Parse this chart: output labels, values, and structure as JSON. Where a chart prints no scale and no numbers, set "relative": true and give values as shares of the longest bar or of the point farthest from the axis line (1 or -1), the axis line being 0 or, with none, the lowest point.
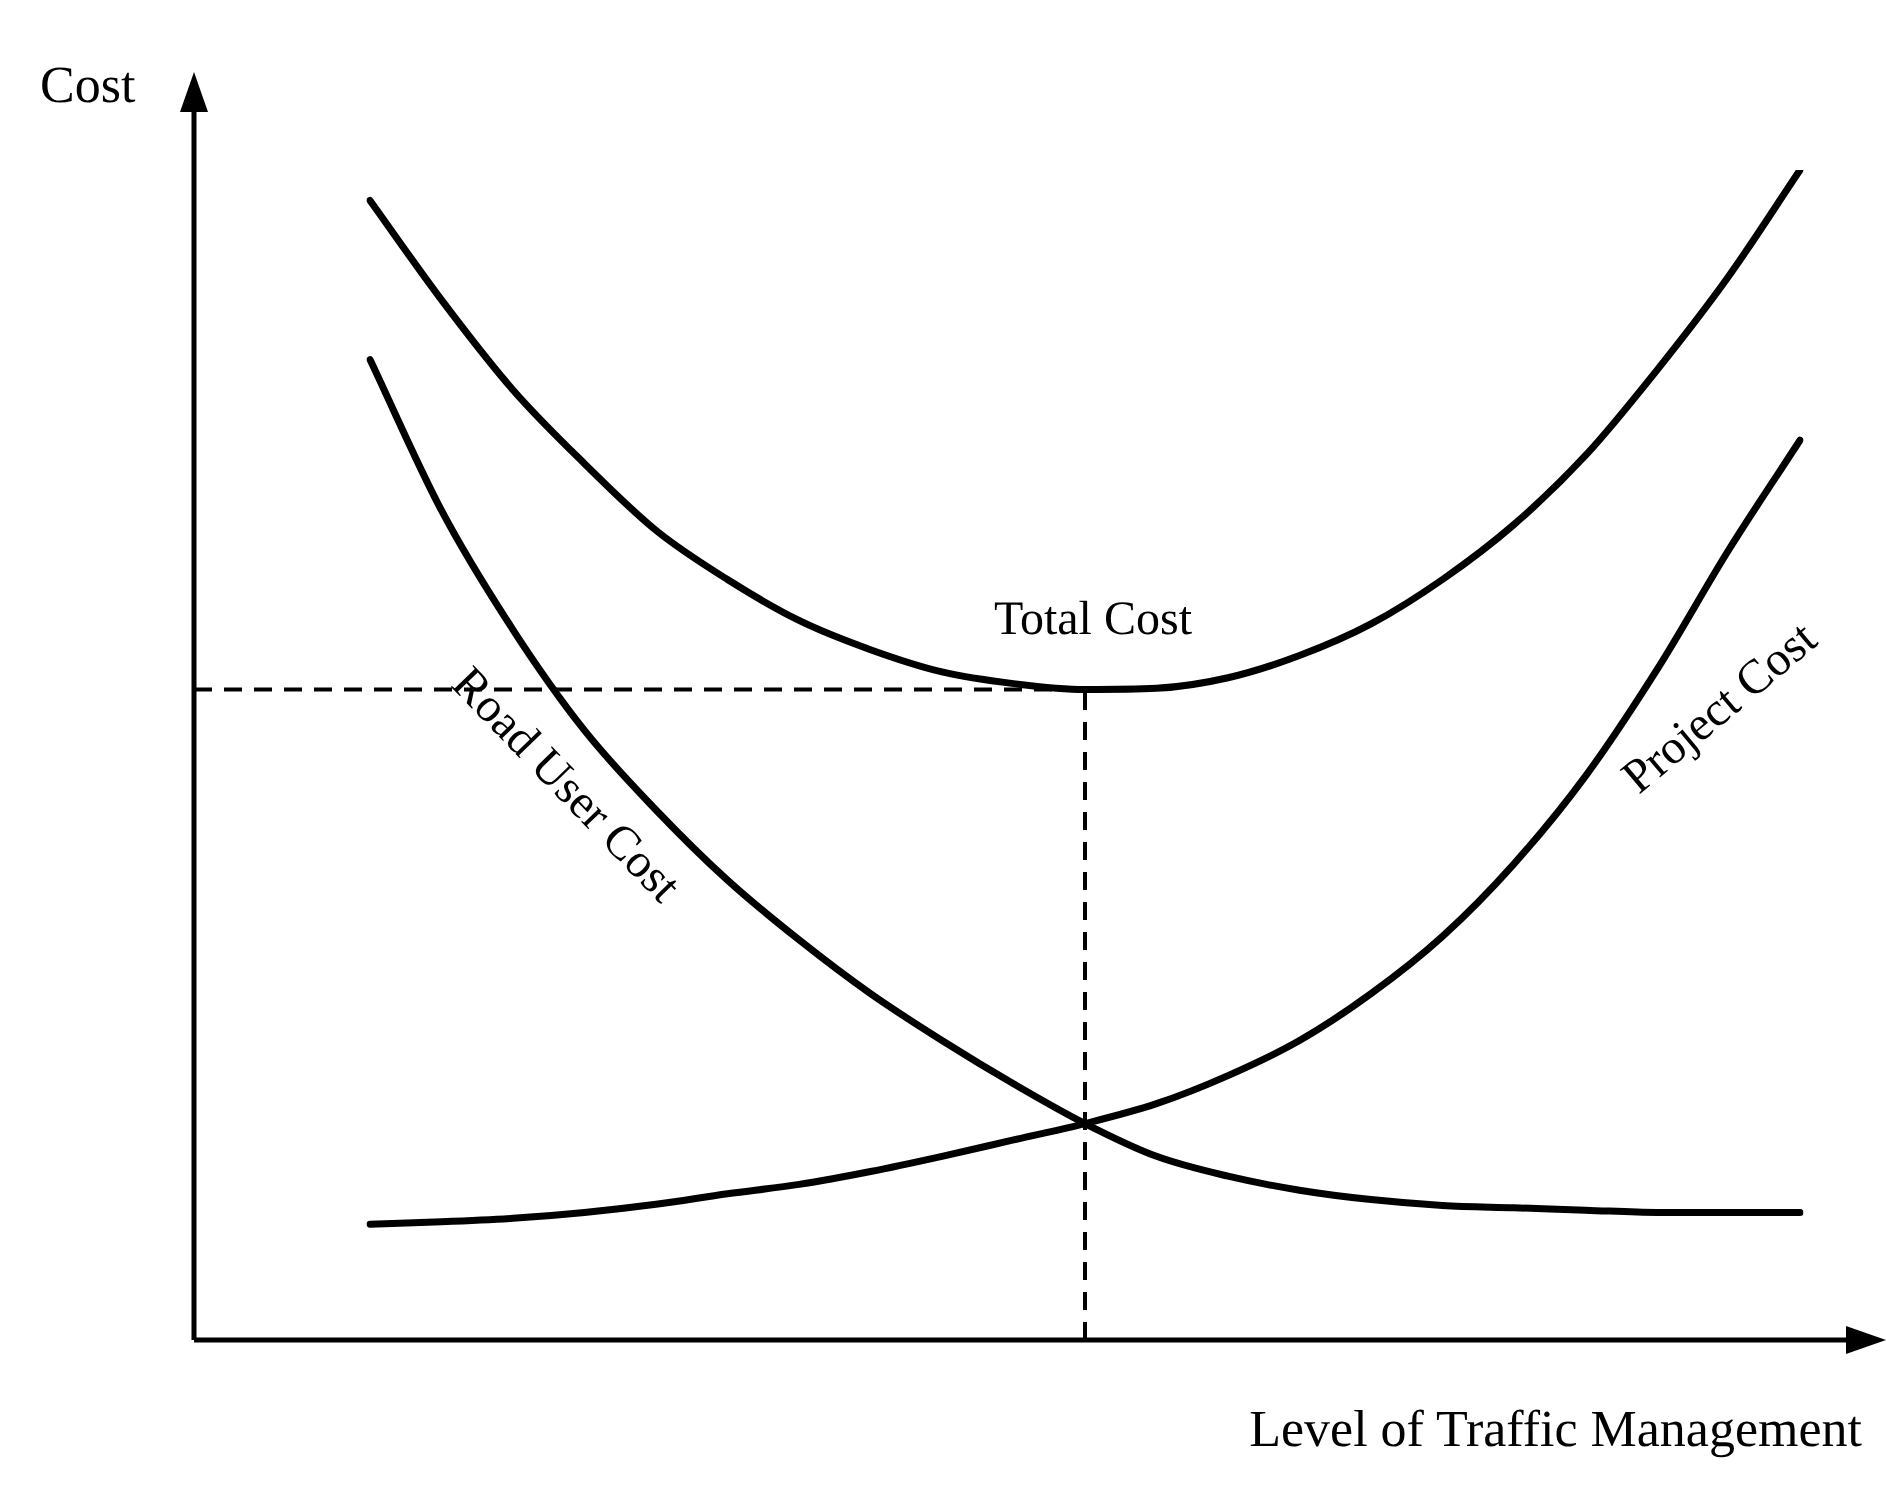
{
  "chart_data": {
    "type": "line",
    "relative": true,
    "marker": "none",
    "xlabel": "Level of Traffic Management",
    "ylabel": "Cost",
    "categories": [
      null,
      null,
      null,
      null,
      null,
      null,
      null,
      null,
      null,
      null,
      null,
      null,
      null,
      null,
      null,
      null,
      null,
      null,
      null,
      null,
      null
    ],
    "series": [
      {
        "name": "Total Cost",
        "color": "#000000",
        "values": [
          0.974,
          0.889,
          0.812,
          0.749,
          0.692,
          0.65,
          0.615,
          0.59,
          0.571,
          0.561,
          0.556,
          0.557,
          0.566,
          0.585,
          0.612,
          0.65,
          0.697,
          0.756,
          0.829,
          0.909,
          1
        ]
      },
      {
        "name": "Road User Cost",
        "color": "#000000",
        "values": [
          0.838,
          0.709,
          0.607,
          0.521,
          0.453,
          0.393,
          0.342,
          0.296,
          0.256,
          0.219,
          0.185,
          0.157,
          0.14,
          0.128,
          0.12,
          0.115,
          0.113,
          0.111,
          0.109,
          0.109,
          0.109
        ]
      },
      {
        "name": "Project Cost",
        "color": "#000000",
        "values": [
          0.099,
          0.101,
          0.104,
          0.109,
          0.116,
          0.125,
          0.133,
          0.144,
          0.157,
          0.171,
          0.185,
          0.202,
          0.226,
          0.256,
          0.296,
          0.345,
          0.407,
          0.482,
          0.573,
          0.675,
          0.769
        ]
      }
    ],
    "ref_lines": [
      {
        "axis": "y",
        "value": 0.556,
        "line_style": "dashed"
      }
    ]
  }
}
